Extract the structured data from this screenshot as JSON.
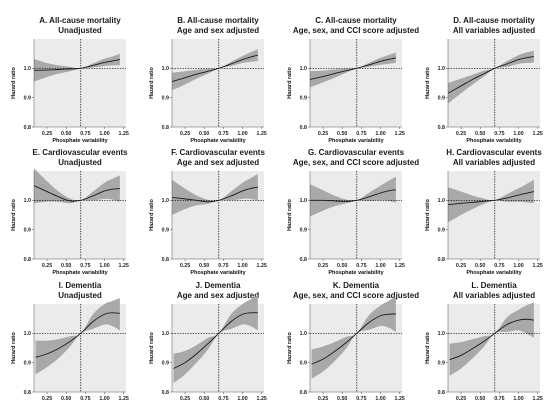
{
  "figure": {
    "xlabel": "Phosphate variability",
    "ylabel": "Hazard ratio"
  },
  "chart_data": [
    {
      "type": "line",
      "title_line1": "A. All-cause mortality",
      "title_line2": "Unadjusted",
      "xlabel": "Phosphate variability",
      "ylabel": "Hazard ratio",
      "xlim": [
        0.08,
        1.28
      ],
      "ylim": [
        0.8,
        1.1
      ],
      "x_ticks": [
        0.25,
        0.5,
        0.75,
        1.0,
        1.25
      ],
      "y_ticks": [
        0.8,
        0.9,
        1.0
      ],
      "reference_x": 0.69,
      "reference_y": 1.0,
      "x": [
        0.08,
        0.25,
        0.4,
        0.55,
        0.69,
        0.85,
        1.0,
        1.1,
        1.2
      ],
      "y": [
        0.993,
        0.994,
        0.996,
        0.998,
        1.0,
        1.01,
        1.02,
        1.025,
        1.03
      ],
      "lower": [
        0.955,
        0.97,
        0.982,
        0.99,
        1.0,
        1.003,
        1.008,
        1.01,
        1.01
      ],
      "upper": [
        1.032,
        1.018,
        1.01,
        1.005,
        1.0,
        1.017,
        1.033,
        1.04,
        1.05
      ]
    },
    {
      "type": "line",
      "title_line1": "B. All-cause mortality",
      "title_line2": "Age and sex adjusted",
      "xlabel": "Phosphate variability",
      "ylabel": "Hazard ratio",
      "xlim": [
        0.08,
        1.28
      ],
      "ylim": [
        0.8,
        1.1
      ],
      "x_ticks": [
        0.25,
        0.5,
        0.75,
        1.0,
        1.25
      ],
      "y_ticks": [
        0.8,
        0.9,
        1.0
      ],
      "reference_x": 0.69,
      "reference_y": 1.0,
      "x": [
        0.08,
        0.25,
        0.4,
        0.55,
        0.69,
        0.85,
        1.0,
        1.1,
        1.2
      ],
      "y": [
        0.955,
        0.968,
        0.98,
        0.99,
        1.0,
        1.015,
        1.03,
        1.038,
        1.045
      ],
      "lower": [
        0.925,
        0.945,
        0.965,
        0.982,
        1.0,
        1.008,
        1.018,
        1.022,
        1.025
      ],
      "upper": [
        0.985,
        0.99,
        0.995,
        0.998,
        1.0,
        1.022,
        1.042,
        1.054,
        1.065
      ]
    },
    {
      "type": "line",
      "title_line1": "C. All-cause mortality",
      "title_line2": "Age, sex, and CCI score adjusted",
      "xlabel": "Phosphate variability",
      "ylabel": "Hazard ratio",
      "xlim": [
        0.08,
        1.28
      ],
      "ylim": [
        0.8,
        1.1
      ],
      "x_ticks": [
        0.25,
        0.5,
        0.75,
        1.0,
        1.25
      ],
      "y_ticks": [
        0.8,
        0.9,
        1.0
      ],
      "reference_x": 0.69,
      "reference_y": 1.0,
      "x": [
        0.08,
        0.25,
        0.4,
        0.55,
        0.69,
        0.85,
        1.0,
        1.1,
        1.2
      ],
      "y": [
        0.962,
        0.972,
        0.982,
        0.992,
        1.0,
        1.012,
        1.024,
        1.03,
        1.036
      ],
      "lower": [
        0.935,
        0.952,
        0.968,
        0.985,
        1.0,
        1.005,
        1.012,
        1.015,
        1.018
      ],
      "upper": [
        0.99,
        0.992,
        0.996,
        0.999,
        1.0,
        1.019,
        1.036,
        1.045,
        1.054
      ]
    },
    {
      "type": "line",
      "title_line1": "D. All-cause mortality",
      "title_line2": "All variables adjusted",
      "xlabel": "Phosphate variability",
      "ylabel": "Hazard ratio",
      "xlim": [
        0.08,
        1.28
      ],
      "ylim": [
        0.8,
        1.1
      ],
      "x_ticks": [
        0.25,
        0.5,
        0.75,
        1.0,
        1.25
      ],
      "y_ticks": [
        0.8,
        0.9,
        1.0
      ],
      "reference_x": 0.69,
      "reference_y": 1.0,
      "x": [
        0.08,
        0.25,
        0.4,
        0.55,
        0.69,
        0.85,
        1.0,
        1.1,
        1.2
      ],
      "y": [
        0.915,
        0.94,
        0.962,
        0.982,
        1.0,
        1.015,
        1.03,
        1.036,
        1.04
      ],
      "lower": [
        0.88,
        0.915,
        0.945,
        0.972,
        1.0,
        1.005,
        1.015,
        1.018,
        1.02
      ],
      "upper": [
        0.95,
        0.965,
        0.978,
        0.992,
        1.0,
        1.025,
        1.045,
        1.054,
        1.06
      ]
    },
    {
      "type": "line",
      "title_line1": "E. Cardiovascular events",
      "title_line2": "Unadjusted",
      "xlabel": "Phosphate variability",
      "ylabel": "Hazard ratio",
      "xlim": [
        0.08,
        1.28
      ],
      "ylim": [
        0.8,
        1.1
      ],
      "x_ticks": [
        0.25,
        0.5,
        0.75,
        1.0,
        1.25
      ],
      "y_ticks": [
        0.8,
        0.9,
        1.0
      ],
      "reference_x": 0.69,
      "reference_y": 1.0,
      "x": [
        0.08,
        0.25,
        0.4,
        0.55,
        0.69,
        0.85,
        1.0,
        1.1,
        1.2
      ],
      "y": [
        1.05,
        1.03,
        1.012,
        0.998,
        1.0,
        1.015,
        1.032,
        1.038,
        1.04
      ],
      "lower": [
        0.99,
        0.995,
        0.995,
        0.99,
        1.0,
        1.0,
        1.005,
        1.003,
        0.995
      ],
      "upper": [
        1.11,
        1.065,
        1.03,
        1.006,
        1.0,
        1.03,
        1.06,
        1.073,
        1.085
      ]
    },
    {
      "type": "line",
      "title_line1": "F. Cardiovascular events",
      "title_line2": "Age and sex adjusted",
      "xlabel": "Phosphate variability",
      "ylabel": "Hazard ratio",
      "xlim": [
        0.08,
        1.28
      ],
      "ylim": [
        0.8,
        1.1
      ],
      "x_ticks": [
        0.25,
        0.5,
        0.75,
        1.0,
        1.25
      ],
      "y_ticks": [
        0.8,
        0.9,
        1.0
      ],
      "reference_x": 0.69,
      "reference_y": 1.0,
      "x": [
        0.08,
        0.25,
        0.4,
        0.55,
        0.69,
        0.85,
        1.0,
        1.1,
        1.2
      ],
      "y": [
        1.01,
        1.005,
        1.0,
        0.995,
        1.0,
        1.015,
        1.032,
        1.04,
        1.045
      ],
      "lower": [
        0.95,
        0.97,
        0.983,
        0.988,
        1.0,
        1.0,
        1.005,
        1.005,
        1.0
      ],
      "upper": [
        1.07,
        1.04,
        1.017,
        1.002,
        1.0,
        1.03,
        1.06,
        1.075,
        1.09
      ]
    },
    {
      "type": "line",
      "title_line1": "G. Cardiovascular events",
      "title_line2": "Age, sex, and CCI score adjusted",
      "xlabel": "Phosphate variability",
      "ylabel": "Hazard ratio",
      "xlim": [
        0.08,
        1.28
      ],
      "ylim": [
        0.8,
        1.1
      ],
      "x_ticks": [
        0.25,
        0.5,
        0.75,
        1.0,
        1.25
      ],
      "y_ticks": [
        0.8,
        0.9,
        1.0
      ],
      "reference_x": 0.69,
      "reference_y": 1.0,
      "x": [
        0.08,
        0.25,
        0.4,
        0.55,
        0.69,
        0.85,
        1.0,
        1.1,
        1.2
      ],
      "y": [
        1.0,
        1.0,
        0.998,
        0.996,
        1.0,
        1.012,
        1.025,
        1.032,
        1.036
      ],
      "lower": [
        0.945,
        0.965,
        0.98,
        0.989,
        1.0,
        0.998,
        1.0,
        0.998,
        0.992
      ],
      "upper": [
        1.055,
        1.035,
        1.016,
        1.003,
        1.0,
        1.026,
        1.05,
        1.066,
        1.08
      ]
    },
    {
      "type": "line",
      "title_line1": "H. Cardiovascular events",
      "title_line2": "All variables adjusted",
      "xlabel": "Phosphate variability",
      "ylabel": "Hazard ratio",
      "xlim": [
        0.08,
        1.28
      ],
      "ylim": [
        0.8,
        1.1
      ],
      "x_ticks": [
        0.25,
        0.5,
        0.75,
        1.0,
        1.25
      ],
      "y_ticks": [
        0.8,
        0.9,
        1.0
      ],
      "reference_x": 0.69,
      "reference_y": 1.0,
      "x": [
        0.08,
        0.25,
        0.4,
        0.55,
        0.69,
        0.85,
        1.0,
        1.1,
        1.2
      ],
      "y": [
        0.985,
        0.99,
        0.993,
        0.997,
        1.0,
        1.008,
        1.018,
        1.024,
        1.03
      ],
      "lower": [
        0.925,
        0.95,
        0.97,
        0.988,
        1.0,
        0.995,
        0.995,
        0.993,
        0.99
      ],
      "upper": [
        1.045,
        1.03,
        1.016,
        1.006,
        1.0,
        1.021,
        1.041,
        1.055,
        1.07
      ]
    },
    {
      "type": "line",
      "title_line1": "I. Dementia",
      "title_line2": "Unadjusted",
      "xlabel": "Phosphate variability",
      "ylabel": "Hazard ratio",
      "xlim": [
        0.08,
        1.28
      ],
      "ylim": [
        0.8,
        1.1
      ],
      "x_ticks": [
        0.25,
        0.5,
        0.75,
        1.0,
        1.25
      ],
      "y_ticks": [
        0.8,
        0.9,
        1.0
      ],
      "reference_x": 0.69,
      "reference_y": 1.0,
      "x": [
        0.1,
        0.25,
        0.4,
        0.55,
        0.69,
        0.85,
        1.0,
        1.1,
        1.2
      ],
      "y": [
        0.918,
        0.93,
        0.948,
        0.972,
        1.0,
        1.04,
        1.065,
        1.07,
        1.068
      ],
      "lower": [
        0.86,
        0.885,
        0.915,
        0.955,
        1.0,
        1.015,
        1.03,
        1.025,
        1.01
      ],
      "upper": [
        0.975,
        0.975,
        0.98,
        0.99,
        1.0,
        1.065,
        1.1,
        1.11,
        1.12
      ]
    },
    {
      "type": "line",
      "title_line1": "J. Dementia",
      "title_line2": "Age and sex adjusted",
      "xlabel": "Phosphate variability",
      "ylabel": "Hazard ratio",
      "xlim": [
        0.08,
        1.28
      ],
      "ylim": [
        0.8,
        1.1
      ],
      "x_ticks": [
        0.25,
        0.5,
        0.75,
        1.0,
        1.25
      ],
      "y_ticks": [
        0.8,
        0.9,
        1.0
      ],
      "reference_x": 0.69,
      "reference_y": 1.0,
      "x": [
        0.1,
        0.25,
        0.4,
        0.55,
        0.69,
        0.85,
        1.0,
        1.1,
        1.2
      ],
      "y": [
        0.88,
        0.9,
        0.93,
        0.965,
        1.0,
        1.04,
        1.065,
        1.07,
        1.07
      ],
      "lower": [
        0.83,
        0.86,
        0.9,
        0.945,
        1.0,
        1.015,
        1.03,
        1.025,
        1.01
      ],
      "upper": [
        0.93,
        0.94,
        0.96,
        0.985,
        1.0,
        1.065,
        1.1,
        1.115,
        1.13
      ]
    },
    {
      "type": "line",
      "title_line1": "K. Dementia",
      "title_line2": "Age, sex, and CCI score adjusted",
      "xlabel": "Phosphate variability",
      "ylabel": "Hazard ratio",
      "xlim": [
        0.08,
        1.28
      ],
      "ylim": [
        0.8,
        1.1
      ],
      "x_ticks": [
        0.25,
        0.5,
        0.75,
        1.0,
        1.25
      ],
      "y_ticks": [
        0.8,
        0.9,
        1.0
      ],
      "reference_x": 0.69,
      "reference_y": 1.0,
      "x": [
        0.1,
        0.25,
        0.4,
        0.55,
        0.69,
        0.85,
        1.0,
        1.1,
        1.2
      ],
      "y": [
        0.895,
        0.912,
        0.938,
        0.968,
        1.0,
        1.037,
        1.06,
        1.065,
        1.066
      ],
      "lower": [
        0.845,
        0.87,
        0.905,
        0.948,
        1.0,
        1.012,
        1.025,
        1.02,
        1.005
      ],
      "upper": [
        0.945,
        0.955,
        0.97,
        0.988,
        1.0,
        1.062,
        1.095,
        1.11,
        1.125
      ]
    },
    {
      "type": "line",
      "title_line1": "L. Dementia",
      "title_line2": "All variables adjusted",
      "xlabel": "Phosphate variability",
      "ylabel": "Hazard ratio",
      "xlim": [
        0.08,
        1.28
      ],
      "ylim": [
        0.8,
        1.1
      ],
      "x_ticks": [
        0.25,
        0.5,
        0.75,
        1.0,
        1.25
      ],
      "y_ticks": [
        0.8,
        0.9,
        1.0
      ],
      "reference_x": 0.69,
      "reference_y": 1.0,
      "x": [
        0.1,
        0.25,
        0.4,
        0.55,
        0.69,
        0.85,
        1.0,
        1.1,
        1.2
      ],
      "y": [
        0.91,
        0.925,
        0.948,
        0.973,
        1.0,
        1.03,
        1.045,
        1.048,
        1.045
      ],
      "lower": [
        0.855,
        0.88,
        0.915,
        0.955,
        1.0,
        1.005,
        1.01,
        1.0,
        0.985
      ],
      "upper": [
        0.965,
        0.97,
        0.98,
        0.99,
        1.0,
        1.055,
        1.08,
        1.095,
        1.105
      ]
    }
  ]
}
